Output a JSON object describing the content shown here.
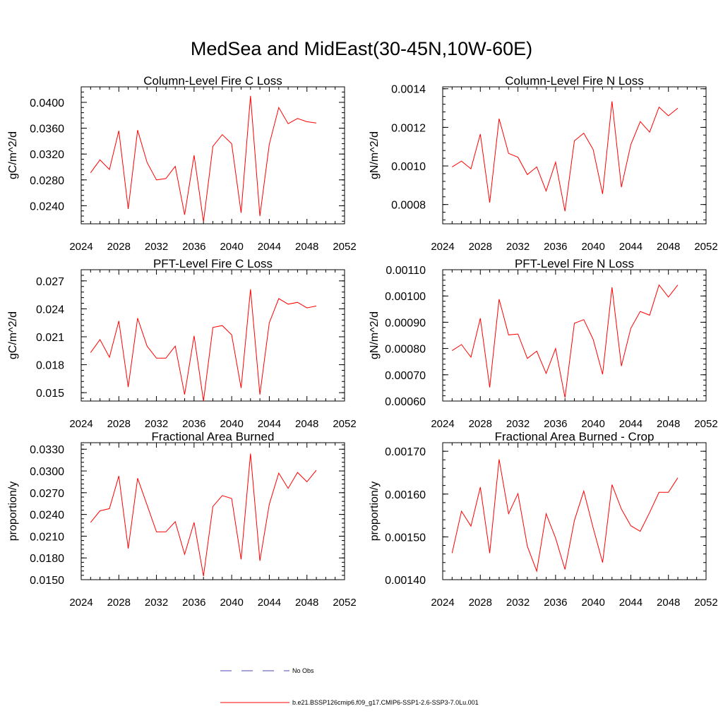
{
  "page": {
    "title": "MedSea and MidEast(30-45N,10W-60E)"
  },
  "colors": {
    "model": "#ff0000",
    "obs": "#4a4ab0",
    "axis": "#000000"
  },
  "legend": {
    "items": [
      {
        "label": "No Obs",
        "style": "dashed",
        "color": "#4a4ab0"
      },
      {
        "label": "b.e21.BSSP126cmip6.f09_g17.CMIP6-SSP1-2.6-SSP3-7.0Lu.001",
        "style": "solid",
        "color": "#ff0000"
      }
    ]
  },
  "chart_data": [
    {
      "type": "line",
      "title": "Column-Level Fire C Loss",
      "ylabel": "gC/m^2/d",
      "xlim": [
        2024,
        2052
      ],
      "xticks": [
        2024,
        2028,
        2032,
        2036,
        2040,
        2044,
        2048,
        2052
      ],
      "ylim": [
        0.0212,
        0.0424
      ],
      "yticks": [
        "0.0240",
        "0.0280",
        "0.0320",
        "0.0360",
        "0.0400"
      ],
      "yticks_values": [
        0.024,
        0.028,
        0.032,
        0.036,
        0.04
      ],
      "x": [
        2025,
        2026,
        2027,
        2028,
        2029,
        2030,
        2031,
        2032,
        2033,
        2034,
        2035,
        2036,
        2037,
        2038,
        2039,
        2040,
        2041,
        2042,
        2043,
        2044,
        2045,
        2046,
        2047,
        2048,
        2049
      ],
      "series": [
        {
          "values": [
            0.0291,
            0.0311,
            0.0296,
            0.0356,
            0.0235,
            0.0357,
            0.0307,
            0.028,
            0.0282,
            0.0301,
            0.0226,
            0.0318,
            0.0215,
            0.0332,
            0.035,
            0.0336,
            0.0229,
            0.041,
            0.0224,
            0.0335,
            0.0392,
            0.0367,
            0.0375,
            0.037,
            0.0368
          ]
        }
      ]
    },
    {
      "type": "line",
      "title": "Column-Level Fire N Loss",
      "ylabel": "gN/m^2/d",
      "xlim": [
        2024,
        2052
      ],
      "xticks": [
        2024,
        2028,
        2032,
        2036,
        2040,
        2044,
        2048,
        2052
      ],
      "ylim": [
        0.0007,
        0.00141
      ],
      "yticks": [
        "0.0008",
        "0.0010",
        "0.0012",
        "0.0014"
      ],
      "yticks_values": [
        0.0008,
        0.001,
        0.0012,
        0.0014
      ],
      "x": [
        2025,
        2026,
        2027,
        2028,
        2029,
        2030,
        2031,
        2032,
        2033,
        2034,
        2035,
        2036,
        2037,
        2038,
        2039,
        2040,
        2041,
        2042,
        2043,
        2044,
        2045,
        2046,
        2047,
        2048,
        2049
      ],
      "series": [
        {
          "values": [
            0.000995,
            0.001025,
            0.000985,
            0.001165,
            0.00081,
            0.001245,
            0.001065,
            0.001045,
            0.000955,
            0.000995,
            0.00087,
            0.00102,
            0.000765,
            0.00113,
            0.00117,
            0.001085,
            0.000855,
            0.001335,
            0.00089,
            0.00111,
            0.00123,
            0.001175,
            0.001305,
            0.00126,
            0.0013
          ]
        }
      ]
    },
    {
      "type": "line",
      "title": "PFT-Level Fire C Loss",
      "ylabel": "gC/m^2/d",
      "xlim": [
        2024,
        2052
      ],
      "xticks": [
        2024,
        2028,
        2032,
        2036,
        2040,
        2044,
        2048,
        2052
      ],
      "ylim": [
        0.0141,
        0.0282
      ],
      "yticks": [
        "0.015",
        "0.018",
        "0.021",
        "0.024",
        "0.027"
      ],
      "yticks_values": [
        0.015,
        0.018,
        0.021,
        0.024,
        0.027
      ],
      "x": [
        2025,
        2026,
        2027,
        2028,
        2029,
        2030,
        2031,
        2032,
        2033,
        2034,
        2035,
        2036,
        2037,
        2038,
        2039,
        2040,
        2041,
        2042,
        2043,
        2044,
        2045,
        2046,
        2047,
        2048,
        2049
      ],
      "series": [
        {
          "values": [
            0.0193,
            0.0207,
            0.0188,
            0.0227,
            0.0156,
            0.023,
            0.02,
            0.0187,
            0.0187,
            0.02,
            0.0148,
            0.0211,
            0.0141,
            0.022,
            0.0222,
            0.0212,
            0.0155,
            0.0261,
            0.0148,
            0.0225,
            0.0251,
            0.0245,
            0.0247,
            0.0241,
            0.0243
          ]
        }
      ]
    },
    {
      "type": "line",
      "title": "PFT-Level Fire N Loss",
      "ylabel": "gN/m^2/d",
      "xlim": [
        2024,
        2052
      ],
      "xticks": [
        2024,
        2028,
        2032,
        2036,
        2040,
        2044,
        2048,
        2052
      ],
      "ylim": [
        0.0006,
        0.0011
      ],
      "yticks": [
        "0.00060",
        "0.00070",
        "0.00080",
        "0.00090",
        "0.00100",
        "0.00110"
      ],
      "yticks_values": [
        0.0006,
        0.0007,
        0.0008,
        0.0009,
        0.001,
        0.0011
      ],
      "x": [
        2025,
        2026,
        2027,
        2028,
        2029,
        2030,
        2031,
        2032,
        2033,
        2034,
        2035,
        2036,
        2037,
        2038,
        2039,
        2040,
        2041,
        2042,
        2043,
        2044,
        2045,
        2046,
        2047,
        2048,
        2049
      ],
      "series": [
        {
          "values": [
            0.000792,
            0.000815,
            0.000767,
            0.000915,
            0.000652,
            0.000988,
            0.000852,
            0.000855,
            0.000762,
            0.00079,
            0.000705,
            0.0008,
            0.000613,
            0.000896,
            0.00091,
            0.000835,
            0.000702,
            0.001033,
            0.000733,
            0.000877,
            0.000941,
            0.000927,
            0.001042,
            0.000996,
            0.001042
          ]
        }
      ]
    },
    {
      "type": "line",
      "title": "Fractional Area Burned",
      "ylabel": "proportion/y",
      "xlim": [
        2024,
        2052
      ],
      "xticks": [
        2024,
        2028,
        2032,
        2036,
        2040,
        2044,
        2048,
        2052
      ],
      "ylim": [
        0.015,
        0.0339
      ],
      "yticks": [
        "0.0150",
        "0.0180",
        "0.0210",
        "0.0240",
        "0.0270",
        "0.0300",
        "0.0330"
      ],
      "yticks_values": [
        0.015,
        0.018,
        0.021,
        0.024,
        0.027,
        0.03,
        0.033
      ],
      "x": [
        2025,
        2026,
        2027,
        2028,
        2029,
        2030,
        2031,
        2032,
        2033,
        2034,
        2035,
        2036,
        2037,
        2038,
        2039,
        2040,
        2041,
        2042,
        2043,
        2044,
        2045,
        2046,
        2047,
        2048,
        2049
      ],
      "series": [
        {
          "values": [
            0.0229,
            0.0245,
            0.0248,
            0.0293,
            0.0193,
            0.029,
            0.0253,
            0.0216,
            0.0216,
            0.023,
            0.0185,
            0.0229,
            0.0155,
            0.0251,
            0.0266,
            0.0262,
            0.0178,
            0.0324,
            0.0176,
            0.0254,
            0.0297,
            0.0276,
            0.0298,
            0.0285,
            0.0301
          ]
        }
      ]
    },
    {
      "type": "line",
      "title": "Fractional Area Burned - Crop",
      "ylabel": "proportion/y",
      "xlim": [
        2024,
        2052
      ],
      "xticks": [
        2024,
        2028,
        2032,
        2036,
        2040,
        2044,
        2048,
        2052
      ],
      "ylim": [
        0.0014,
        0.00172
      ],
      "yticks": [
        "0.00140",
        "0.00150",
        "0.00160",
        "0.00170"
      ],
      "yticks_values": [
        0.0014,
        0.0015,
        0.0016,
        0.0017
      ],
      "x": [
        2025,
        2026,
        2027,
        2028,
        2029,
        2030,
        2031,
        2032,
        2033,
        2034,
        2035,
        2036,
        2037,
        2038,
        2039,
        2040,
        2041,
        2042,
        2043,
        2044,
        2045,
        2046,
        2047,
        2048,
        2049
      ],
      "series": [
        {
          "values": [
            0.001462,
            0.00156,
            0.001525,
            0.001616,
            0.001462,
            0.001681,
            0.001554,
            0.001601,
            0.001478,
            0.00142,
            0.001554,
            0.001497,
            0.001424,
            0.001538,
            0.001607,
            0.001521,
            0.00144,
            0.001622,
            0.001565,
            0.001526,
            0.001513,
            0.001557,
            0.001604,
            0.001604,
            0.001638
          ]
        }
      ]
    }
  ]
}
